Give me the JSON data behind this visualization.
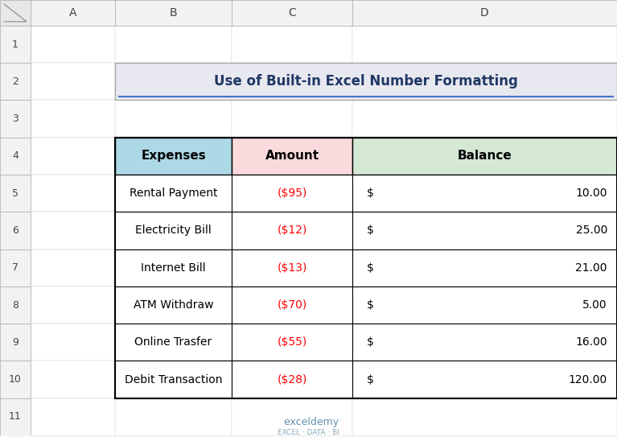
{
  "title": "Use of Built-in Excel Number Formatting",
  "col_headers": [
    "Expenses",
    "Amount",
    "Balance"
  ],
  "rows": [
    [
      "Rental Payment",
      "($95)",
      "$ 10.00"
    ],
    [
      "Electricity Bill",
      "($12)",
      "$ 25.00"
    ],
    [
      "Internet Bill",
      "($13)",
      "$ 21.00"
    ],
    [
      "ATM Withdraw",
      "($70)",
      "$ 5.00"
    ],
    [
      "Online Trasfer",
      "($55)",
      "$ 16.00"
    ],
    [
      "Debit Transaction",
      "($28)",
      "$ 120.00"
    ]
  ],
  "header_bg_expenses": "#ADD8E6",
  "header_bg_amount": "#FADADD",
  "header_bg_balance": "#D5E8D4",
  "title_bg": "#E8E8F0",
  "title_color": "#1F3864",
  "cell_bg": "#FFFFFF",
  "border_color": "#000000",
  "amount_color": "#FF0000",
  "balance_dollar_color": "#000000",
  "balance_num_color": "#000000",
  "row_text_color": "#000000",
  "excel_bg": "#FFFFFF",
  "grid_line_color": "#C0C0C0",
  "header_row_color": "#F2F2F2",
  "col_header_row_color": "#D9D9D9",
  "watermark_color": "#B0C4DE"
}
